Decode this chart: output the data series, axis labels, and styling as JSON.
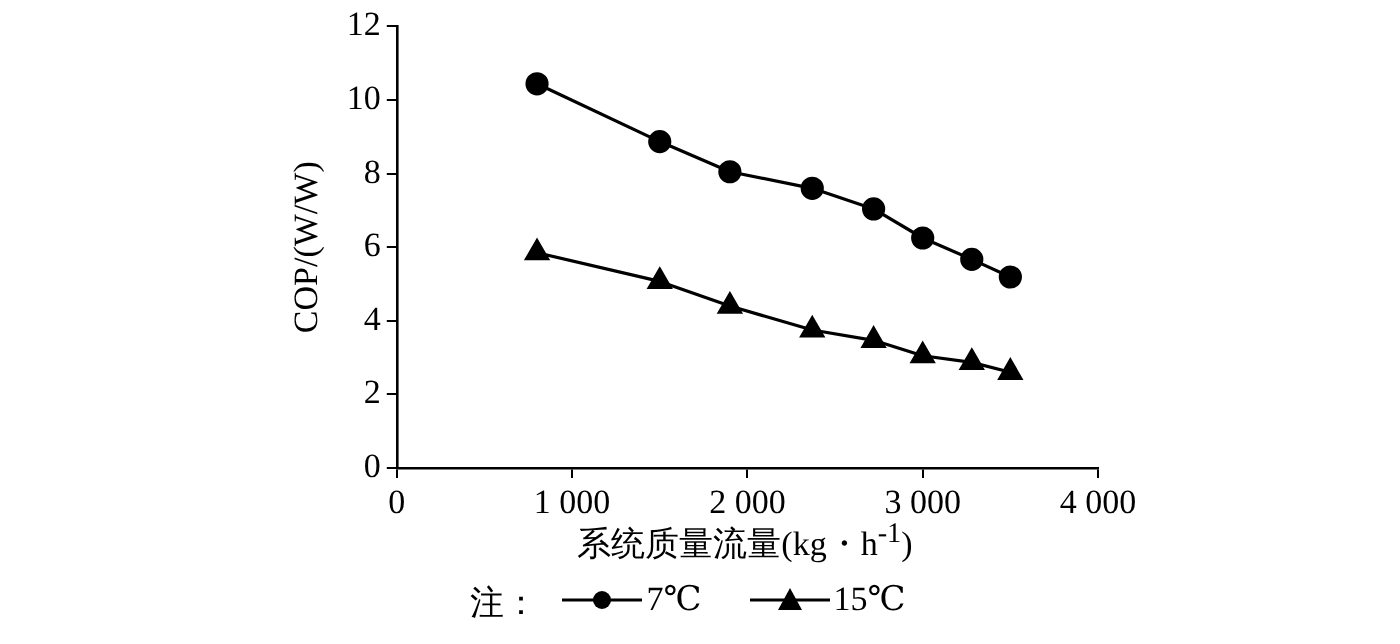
{
  "chart_data": {
    "type": "line",
    "xlabel": "系统质量流量(kg・h$^{-1}$)",
    "ylabel": "COP/(W/W)",
    "legend_title": "注：",
    "legend": "bottom",
    "grid": false,
    "xlim": [
      0,
      4000
    ],
    "xticks": [
      0,
      {
        "value": 1000,
        "label": "1 000"
      },
      {
        "value": 2000,
        "label": "2 000"
      },
      {
        "value": 3000,
        "label": "3 000"
      },
      {
        "value": 4000,
        "label": "4 000"
      }
    ],
    "ylim": [
      0,
      12
    ],
    "yticks": [
      0,
      2,
      4,
      6,
      8,
      10,
      12
    ],
    "line_style": "solid",
    "x": [
      800,
      1500,
      1900,
      2370,
      2720,
      3000,
      3280,
      3500
    ],
    "series": [
      {
        "name": "7℃",
        "color": "#000000",
        "marker": "circle",
        "values": [
          10.44,
          8.87,
          8.05,
          7.6,
          7.04,
          6.25,
          5.67,
          5.19
        ]
      },
      {
        "name": "15℃",
        "color": "#000000",
        "marker": "triangle",
        "values": [
          5.85,
          5.07,
          4.4,
          3.75,
          3.47,
          3.05,
          2.87,
          2.6
        ]
      }
    ]
  }
}
